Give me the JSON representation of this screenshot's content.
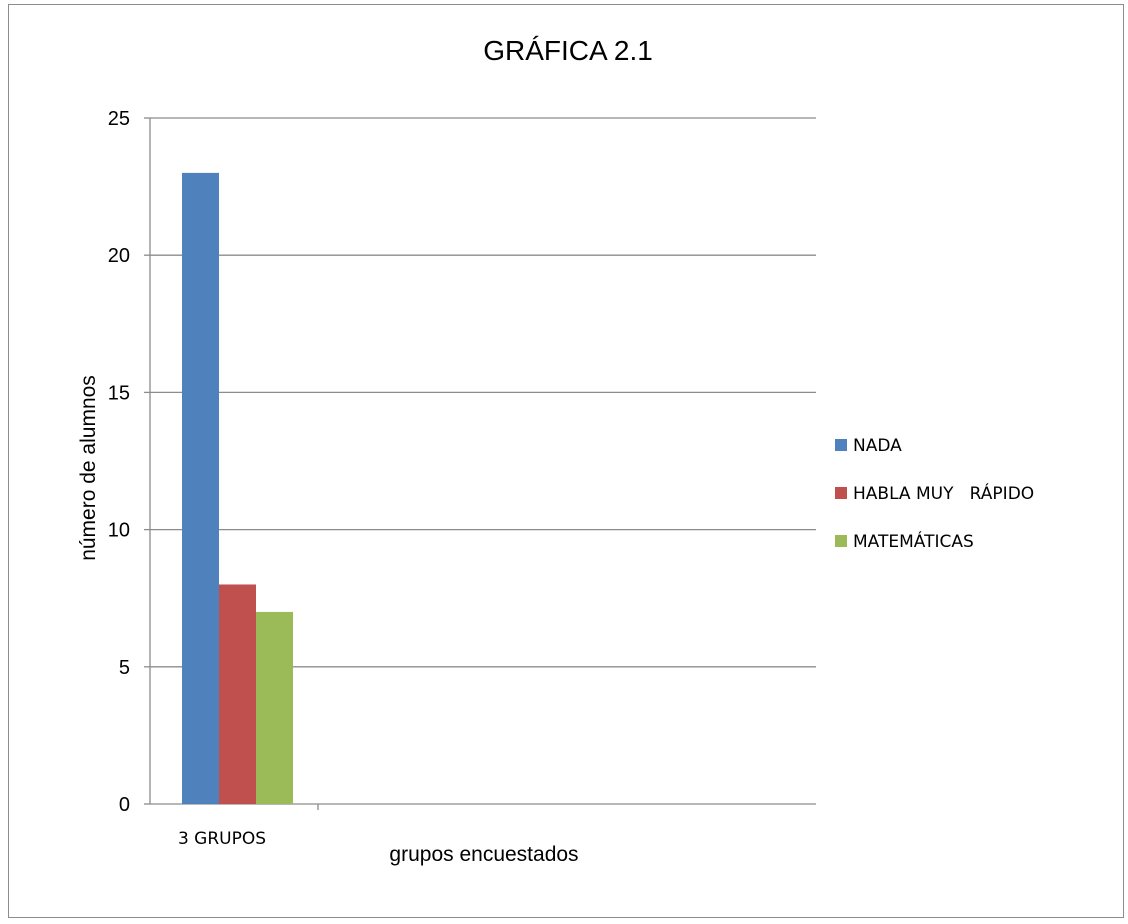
{
  "chart_data": {
    "type": "bar",
    "title": "GRÁFICA  2.1",
    "xlabel": "grupos encuestados",
    "ylabel": "número de alumnos",
    "categories": [
      "3 GRUPOS"
    ],
    "series": [
      {
        "name": "NADA",
        "values": [
          23
        ],
        "color": "#4f81bd"
      },
      {
        "name": "HABLA MUY   RÁPIDO",
        "values": [
          8
        ],
        "color": "#c0504d"
      },
      {
        "name": "MATEMÁTICAS",
        "values": [
          7
        ],
        "color": "#9bbb59"
      }
    ],
    "ylim": [
      0,
      25
    ],
    "yticks": [
      0,
      5,
      10,
      15,
      20,
      25
    ],
    "grid": true,
    "legend": "right"
  }
}
